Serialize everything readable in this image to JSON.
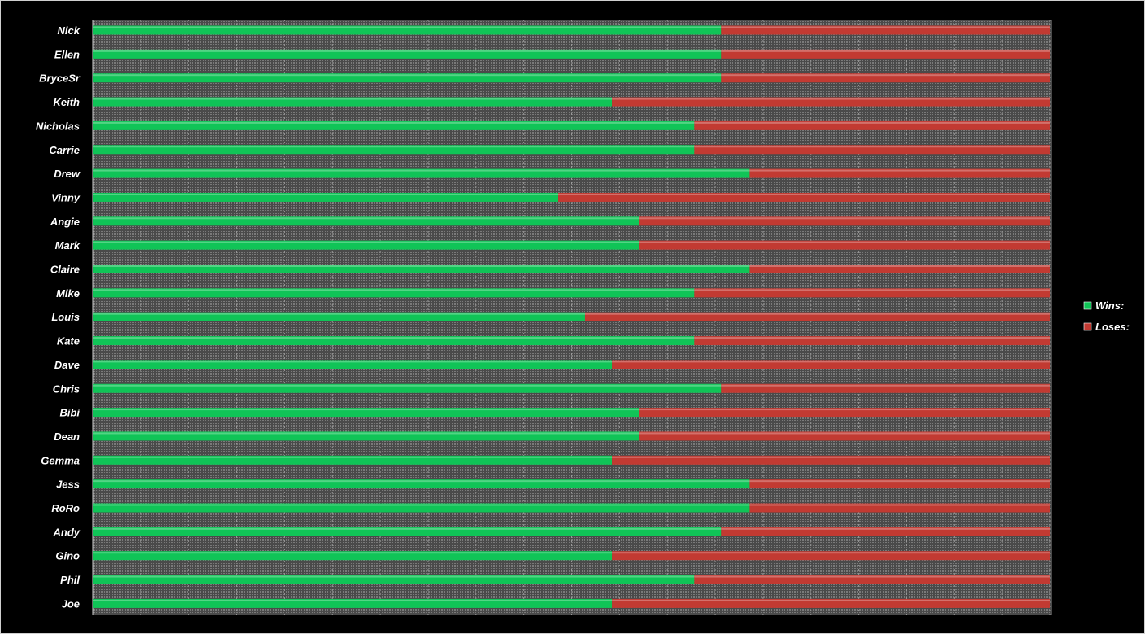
{
  "colors": {
    "background": "#000000",
    "plot_area": "#5a5a5a",
    "wins": "#10c457",
    "loses": "#c23a32"
  },
  "chart_data": {
    "type": "bar",
    "orientation": "horizontal",
    "stacked": "100%",
    "grid": true,
    "legend_position": "right",
    "categories": [
      "Nick",
      "Ellen",
      "BryceSr",
      "Keith",
      "Nicholas",
      "Carrie",
      "Drew",
      "Vinny",
      "Angie",
      "Mark",
      "Claire",
      "Mike",
      "Louis",
      "Kate",
      "Dave",
      "Chris",
      "Bibi",
      "Dean",
      "Gemma",
      "Jess",
      "RoRo",
      "Andy",
      "Gino",
      "Phil",
      "Joe"
    ],
    "series": [
      {
        "name": "Wins:",
        "color": "#10c457",
        "values": [
          0.657,
          0.657,
          0.657,
          0.543,
          0.629,
          0.629,
          0.686,
          0.486,
          0.571,
          0.571,
          0.686,
          0.629,
          0.514,
          0.629,
          0.543,
          0.657,
          0.571,
          0.571,
          0.543,
          0.686,
          0.686,
          0.657,
          0.543,
          0.629,
          0.543
        ]
      },
      {
        "name": "Loses:",
        "color": "#c23a32",
        "values": [
          0.343,
          0.343,
          0.343,
          0.457,
          0.371,
          0.371,
          0.314,
          0.514,
          0.429,
          0.429,
          0.314,
          0.371,
          0.486,
          0.371,
          0.457,
          0.343,
          0.429,
          0.429,
          0.457,
          0.314,
          0.314,
          0.343,
          0.457,
          0.371,
          0.457
        ]
      }
    ],
    "xlim": [
      0,
      1
    ]
  }
}
